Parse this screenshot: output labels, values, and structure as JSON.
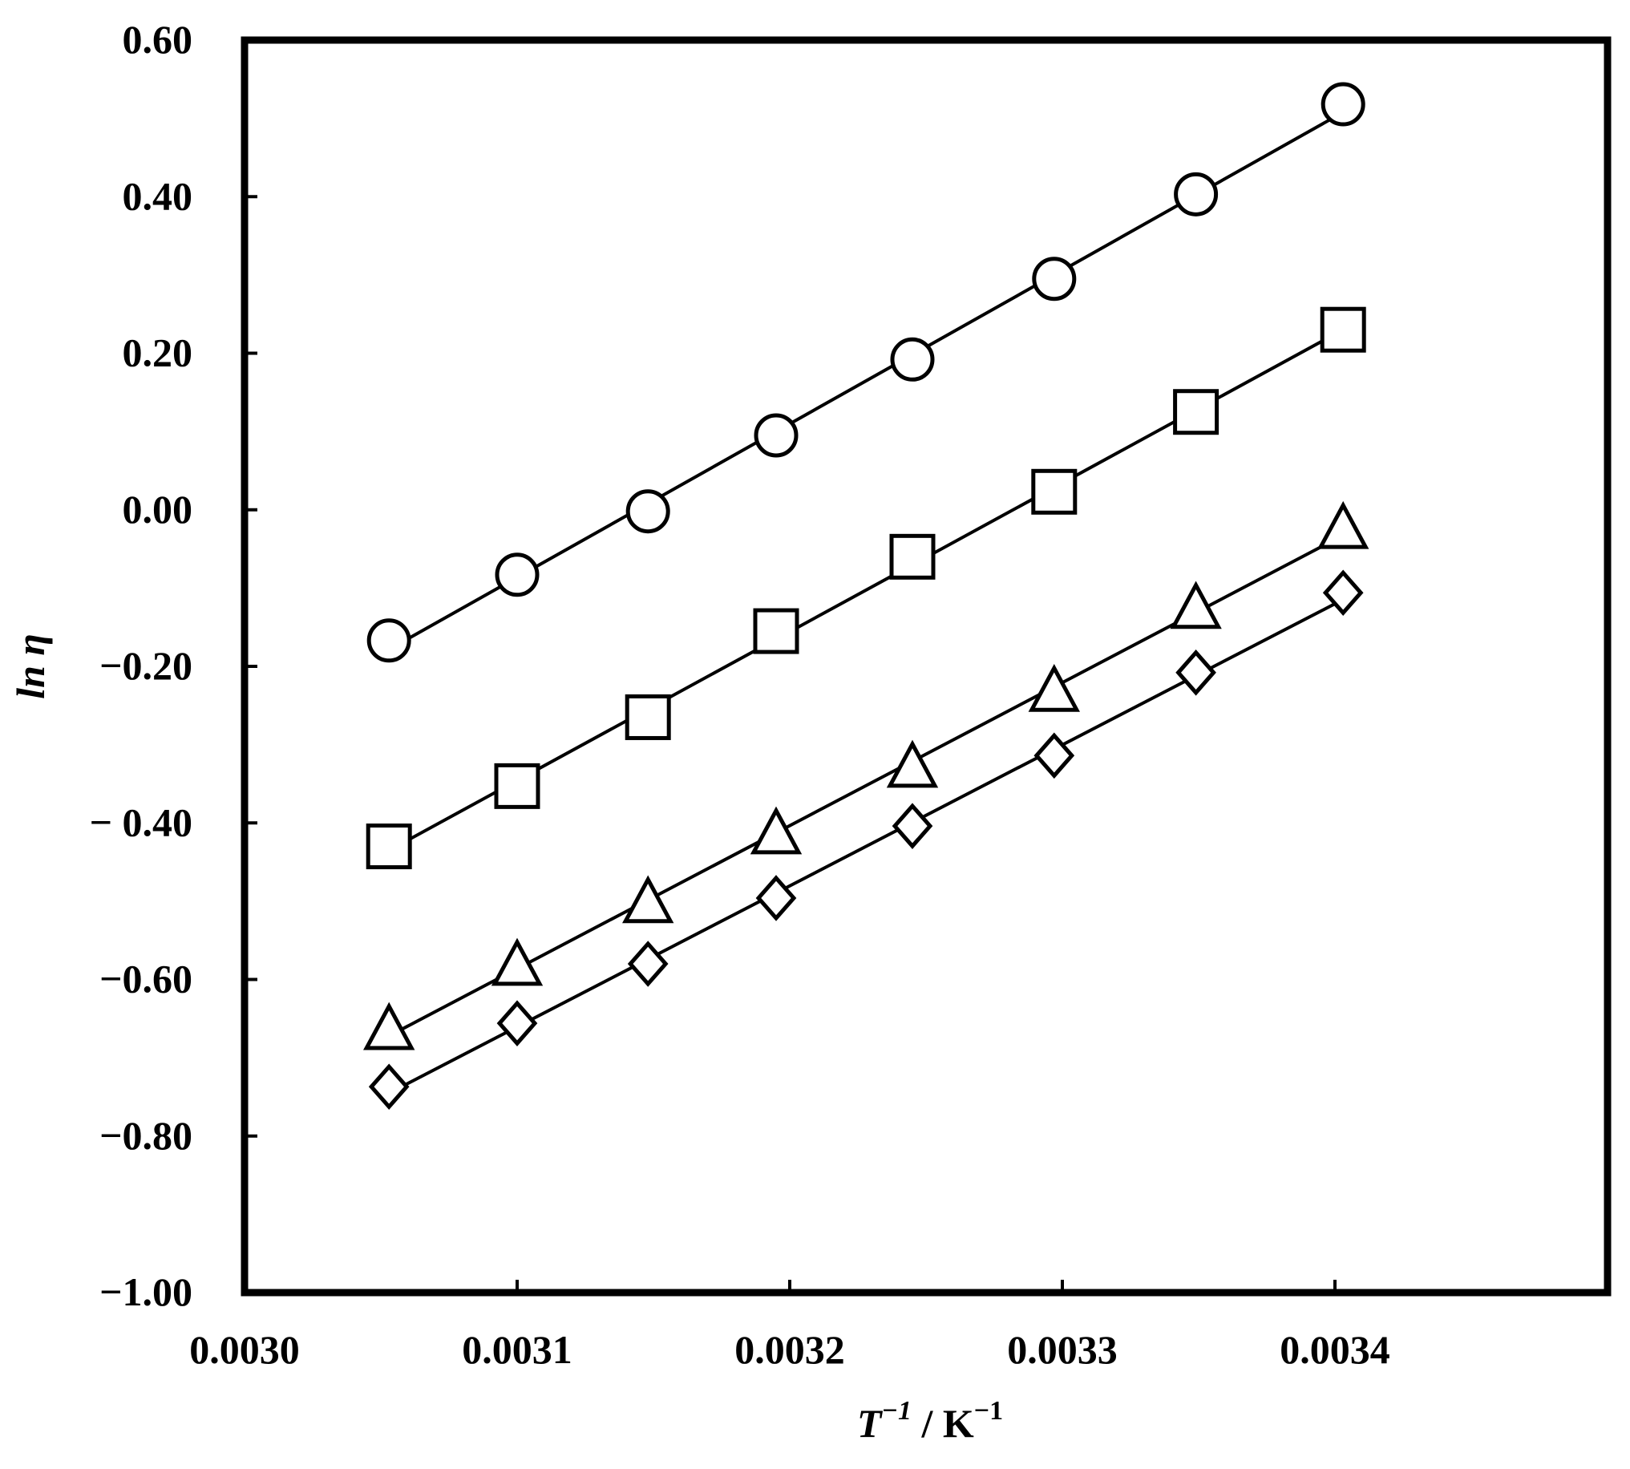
{
  "chart_data": {
    "type": "scatter",
    "xlabel_main": "T",
    "xlabel_main_sup": "−1",
    "xlabel_unit": " / K",
    "xlabel_unit_sup": "−1",
    "ylabel": "ln η",
    "xlim": [
      0.003,
      0.0035
    ],
    "ylim": [
      -1.0,
      0.6
    ],
    "x_ticks": [
      0.003,
      0.0031,
      0.0032,
      0.0033,
      0.0034
    ],
    "x_tick_labels": [
      "0.0030",
      "0.0031",
      "0.0032",
      "0.0033",
      "0.0034"
    ],
    "y_ticks": [
      0.6,
      0.4,
      0.2,
      0.0,
      -0.2,
      -0.4,
      -0.6,
      -0.8,
      -1.0
    ],
    "y_tick_labels": [
      "0.60",
      "0.40",
      "0.20",
      "0.00",
      "−0.20",
      "− 0.40",
      "−0.60",
      "−0.80",
      "−1.00"
    ],
    "grid": false,
    "legend": "none",
    "series": [
      {
        "marker": "circle",
        "x": [
          0.003053,
          0.0031,
          0.003148,
          0.003195,
          0.003245,
          0.003297,
          0.003349,
          0.003403
        ],
        "y": [
          -0.167,
          -0.083,
          -0.002,
          0.095,
          0.192,
          0.295,
          0.403,
          0.518
        ]
      },
      {
        "marker": "square",
        "x": [
          0.003053,
          0.0031,
          0.003148,
          0.003195,
          0.003245,
          0.003297,
          0.003349,
          0.003403
        ],
        "y": [
          -0.43,
          -0.353,
          -0.265,
          -0.155,
          -0.06,
          0.023,
          0.125,
          0.23
        ]
      },
      {
        "marker": "triangle",
        "x": [
          0.003053,
          0.0031,
          0.003148,
          0.003195,
          0.003245,
          0.003297,
          0.003349,
          0.003403
        ],
        "y": [
          -0.665,
          -0.583,
          -0.503,
          -0.415,
          -0.33,
          -0.233,
          -0.127,
          -0.025
        ]
      },
      {
        "marker": "diamond",
        "x": [
          0.003053,
          0.0031,
          0.003148,
          0.003195,
          0.003245,
          0.003297,
          0.003349,
          0.003403
        ],
        "y": [
          -0.737,
          -0.656,
          -0.58,
          -0.496,
          -0.404,
          -0.314,
          -0.208,
          -0.106
        ]
      }
    ]
  }
}
